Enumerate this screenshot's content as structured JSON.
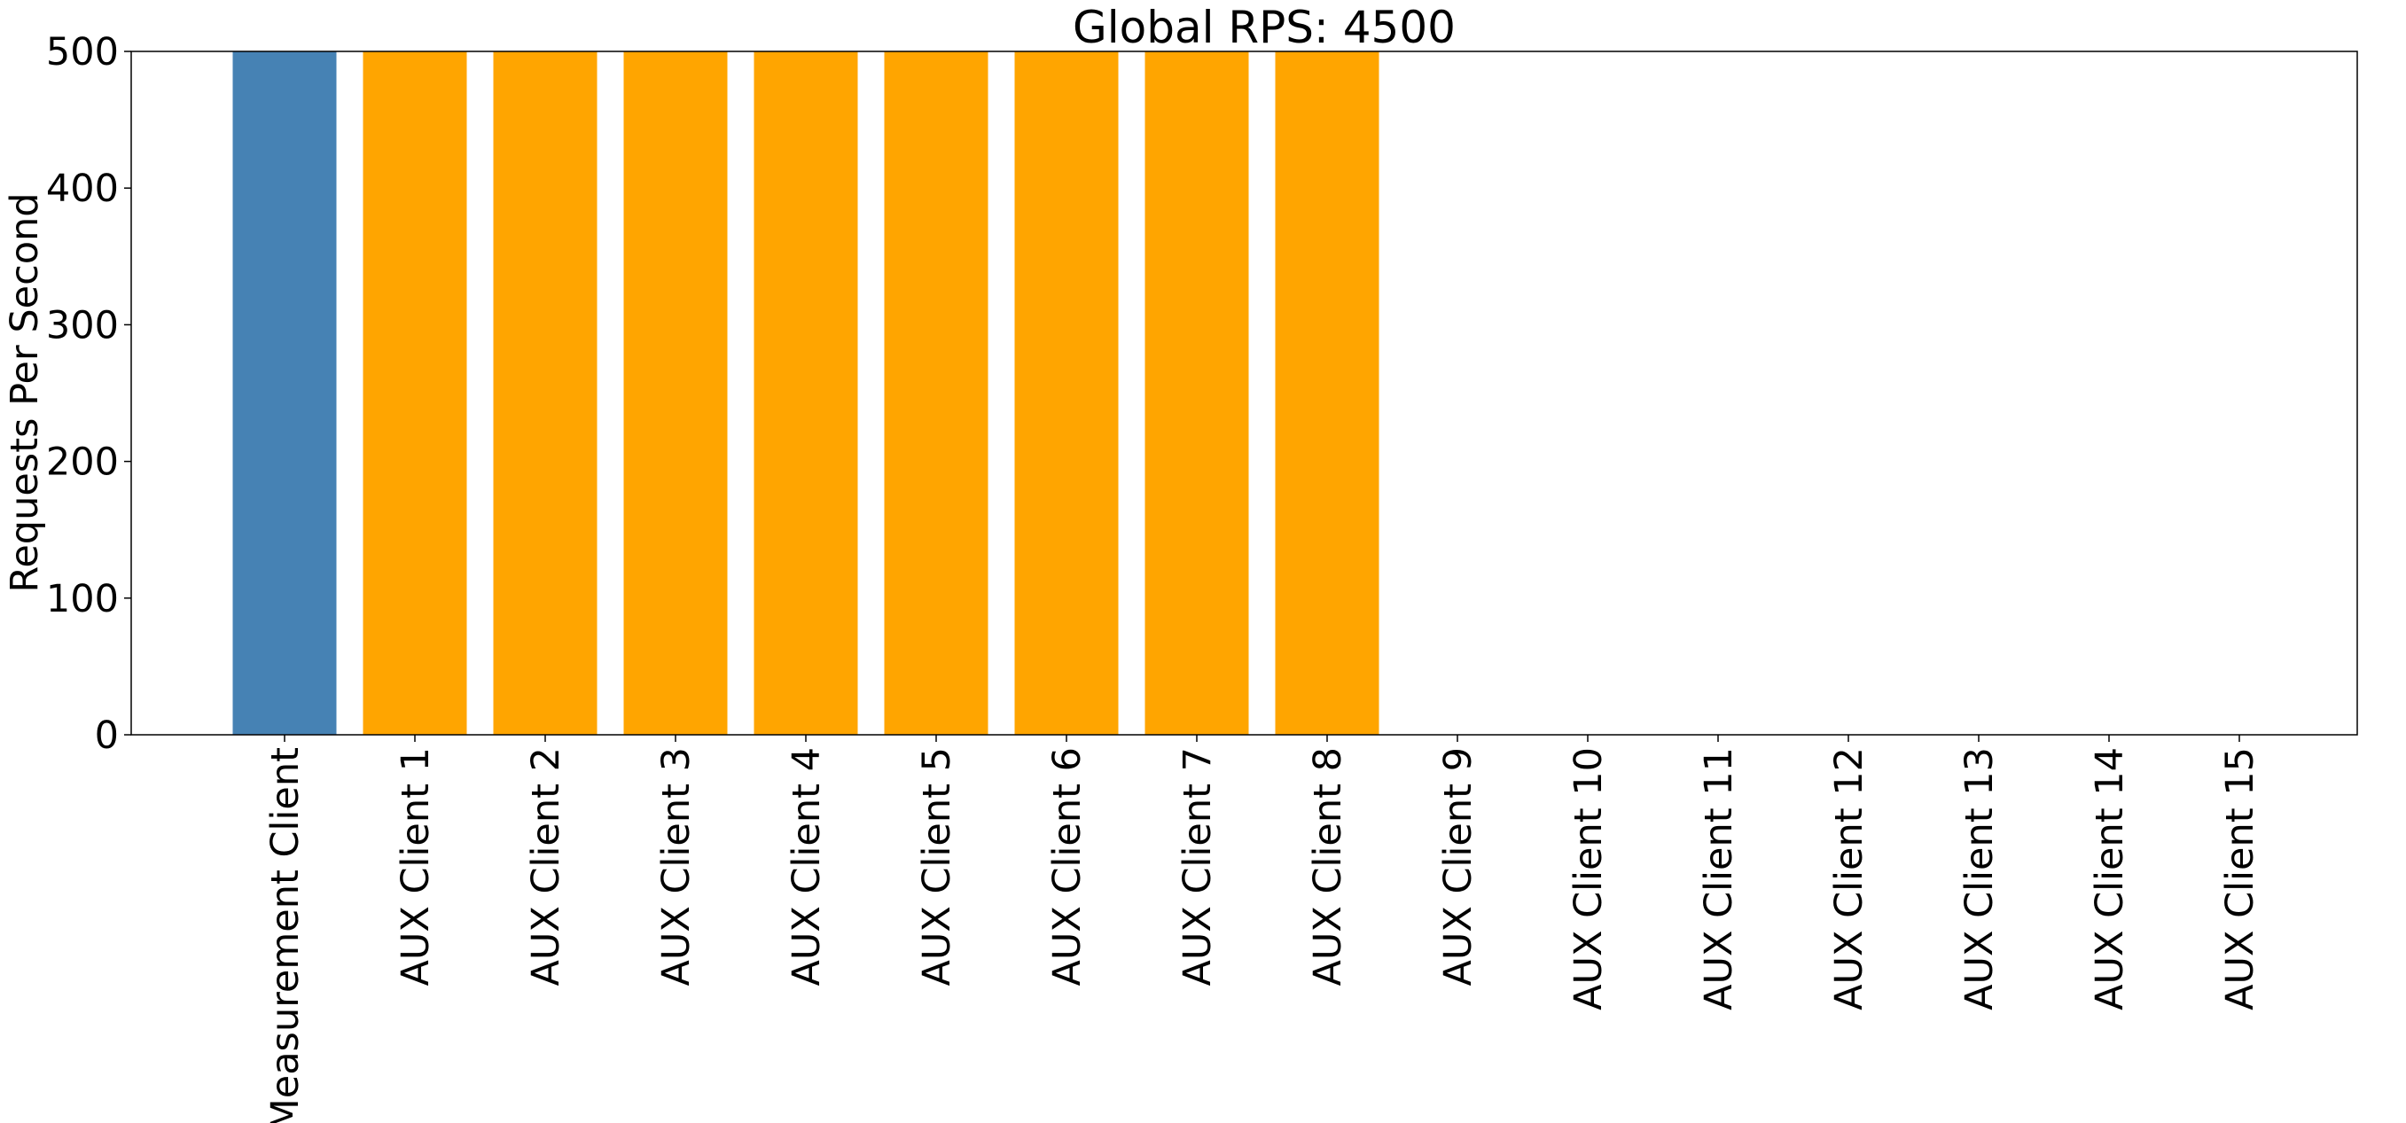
{
  "chart_data": {
    "type": "bar",
    "title": "Global RPS: 4500",
    "xlabel": "",
    "ylabel": "Requests Per Second",
    "ylim": [
      0,
      500
    ],
    "yticks": [
      0,
      100,
      200,
      300,
      400,
      500
    ],
    "categories": [
      "Measurement Client",
      "AUX Client 1",
      "AUX Client 2",
      "AUX Client 3",
      "AUX Client 4",
      "AUX Client 5",
      "AUX Client 6",
      "AUX Client 7",
      "AUX Client 8",
      "AUX Client 9",
      "AUX Client 10",
      "AUX Client 11",
      "AUX Client 12",
      "AUX Client 13",
      "AUX Client 14",
      "AUX Client 15"
    ],
    "values": [
      500,
      500,
      500,
      500,
      500,
      500,
      500,
      500,
      500,
      0,
      0,
      0,
      0,
      0,
      0,
      0
    ],
    "bar_colors": [
      "#4682b4",
      "#ffa500",
      "#ffa500",
      "#ffa500",
      "#ffa500",
      "#ffa500",
      "#ffa500",
      "#ffa500",
      "#ffa500",
      "#ffa500",
      "#ffa500",
      "#ffa500",
      "#ffa500",
      "#ffa500",
      "#ffa500",
      "#ffa500"
    ],
    "grid": false,
    "legend": "none"
  }
}
